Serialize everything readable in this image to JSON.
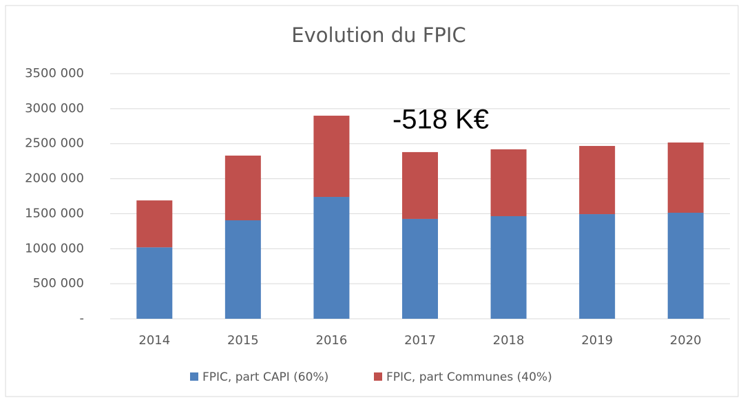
{
  "chart_data": {
    "type": "bar",
    "stacked": true,
    "title": "Evolution du FPIC",
    "annotation": "-518 K€",
    "categories": [
      "2014",
      "2015",
      "2016",
      "2017",
      "2018",
      "2019",
      "2020"
    ],
    "series": [
      {
        "name": "FPIC, part CAPI (60%)",
        "color": "#4f81bd",
        "values": [
          1020000,
          1406000,
          1740000,
          1426000,
          1465000,
          1494000,
          1514000
        ]
      },
      {
        "name": "FPIC, part Communes (40%)",
        "color": "#c0504d",
        "values": [
          670000,
          924000,
          1160000,
          954000,
          955000,
          974000,
          1003000
        ]
      }
    ],
    "ylim": [
      0,
      3500000
    ],
    "yticks": [
      {
        "value": 0,
        "label": "-"
      },
      {
        "value": 500000,
        "label": "500 000"
      },
      {
        "value": 1000000,
        "label": "1000 000"
      },
      {
        "value": 1500000,
        "label": "1500 000"
      },
      {
        "value": 2000000,
        "label": "2000 000"
      },
      {
        "value": 2500000,
        "label": "2500 000"
      },
      {
        "value": 3000000,
        "label": "3000 000"
      },
      {
        "value": 3500000,
        "label": "3500 000"
      }
    ],
    "grid": true,
    "legend": "bottom"
  }
}
